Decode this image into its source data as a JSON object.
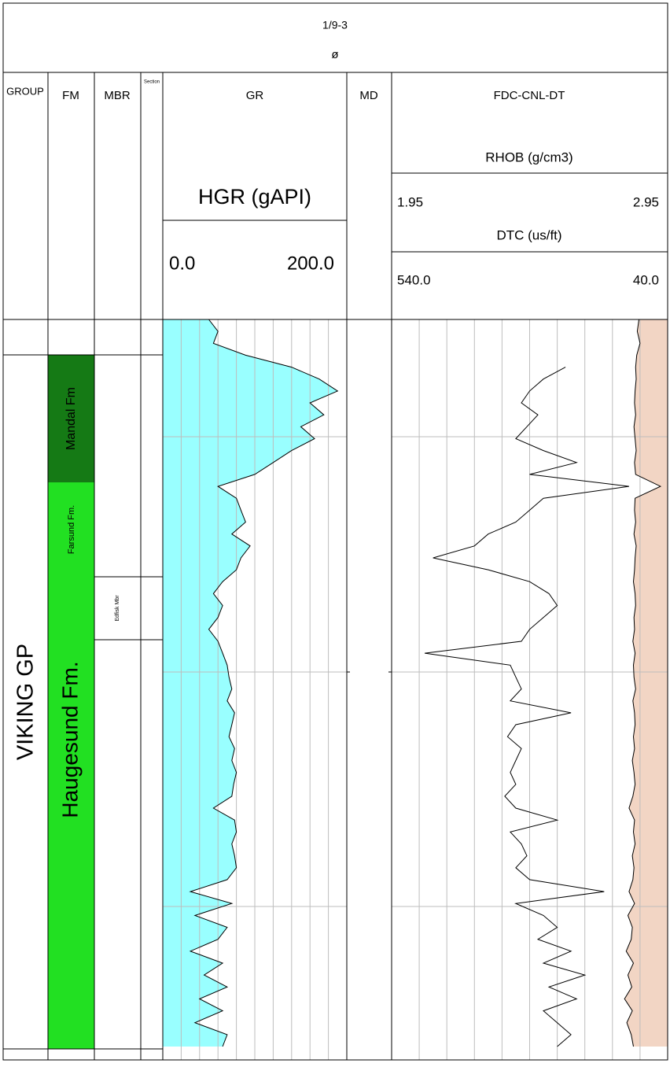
{
  "header": {
    "well": "1/9-3",
    "symbol": "ø"
  },
  "columns": {
    "group": "GROUP",
    "fm": "FM",
    "mbr": "MBR",
    "section": "Section",
    "md": "MD"
  },
  "zones": {
    "group": {
      "label": "VIKING GP"
    },
    "fm": [
      {
        "label": "Mandal Fm",
        "color": "#157a15"
      },
      {
        "label": "Farsund Fm.",
        "color": "#22e022"
      },
      {
        "label": "Haugesund Fm.",
        "color": "#22e022"
      }
    ],
    "mbr": [
      {
        "label": "Edfisk Mbr",
        "color": "#fffacd"
      }
    ],
    "section": [
      {
        "color": "#22e022"
      }
    ]
  },
  "gr_track": {
    "title": "GR",
    "curve": "HGR (gAPI)",
    "fill": "#99ffff",
    "scale": [
      {
        "value": 0,
        "label": "0.0"
      },
      {
        "value": 200,
        "label": "200.0"
      }
    ],
    "values": [
      50,
      60,
      55,
      90,
      140,
      170,
      190,
      160,
      175,
      150,
      165,
      140,
      120,
      100,
      60,
      80,
      85,
      90,
      75,
      95,
      85,
      80,
      65,
      55,
      65,
      60,
      50,
      60,
      65,
      70,
      72,
      75,
      70,
      78,
      75,
      72,
      78,
      75,
      80,
      77,
      75,
      55,
      78,
      80,
      75,
      78,
      80,
      70,
      30,
      75,
      35,
      70,
      60,
      30,
      65,
      45,
      70,
      40,
      65,
      35,
      70,
      65
    ]
  },
  "fdc_track": {
    "title": "FDC-CNL-DT",
    "rhob": {
      "curve": "RHOB (g/cm3)",
      "scale": [
        1.95,
        2.95
      ],
      "values": [
        null,
        null,
        null,
        null,
        2.58,
        2.5,
        2.45,
        2.42,
        2.48,
        2.44,
        2.4,
        2.5,
        2.62,
        2.45,
        2.81,
        2.5,
        2.45,
        2.4,
        2.3,
        2.25,
        2.1,
        2.3,
        2.45,
        2.52,
        2.55,
        2.5,
        2.45,
        2.42,
        2.07,
        2.38,
        2.4,
        2.42,
        2.38,
        2.6,
        2.4,
        2.37,
        2.42,
        2.4,
        2.38,
        2.4,
        2.36,
        2.4,
        2.55,
        2.38,
        2.42,
        2.44,
        2.4,
        2.45,
        2.72,
        2.4,
        2.5,
        2.55,
        2.48,
        2.6,
        2.5,
        2.65,
        2.52,
        2.62,
        2.5,
        2.55,
        2.6,
        2.55
      ]
    },
    "dtc": {
      "curve": "DTC (us/ft)",
      "fill": "#f2d5c4",
      "scale": [
        {
          "value": 540,
          "label": "540.0"
        },
        {
          "value": 40,
          "label": "40.0"
        }
      ],
      "values": [
        92,
        95,
        90,
        96,
        98,
        97,
        99,
        100,
        98,
        101,
        99,
        97,
        100,
        98,
        53,
        99,
        100,
        98,
        101,
        97,
        99,
        100,
        102,
        99,
        98,
        101,
        100,
        103,
        99,
        102,
        101,
        98,
        103,
        100,
        99,
        102,
        100,
        104,
        101,
        99,
        103,
        110,
        100,
        102,
        99,
        104,
        101,
        103,
        110,
        100,
        112,
        104,
        106,
        115,
        102,
        112,
        105,
        118,
        104,
        114,
        106,
        102
      ]
    }
  }
}
